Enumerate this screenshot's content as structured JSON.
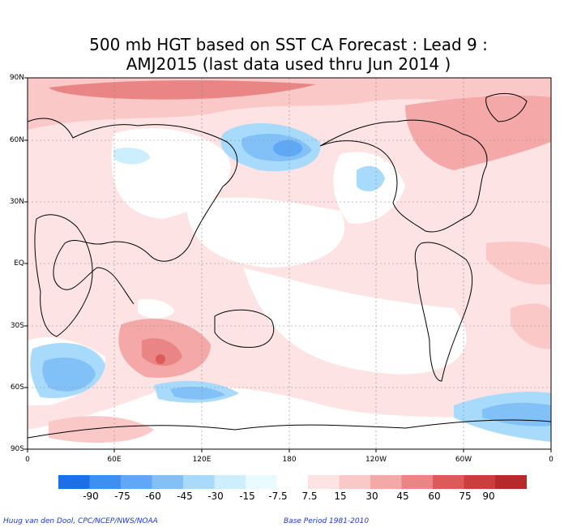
{
  "title": {
    "line1": "500 mb HGT based on SST CA Forecast : Lead 9 :",
    "line2": "AMJ2015 (last data used thru Jun 2014 )"
  },
  "lat_labels": [
    "90N",
    "60N",
    "30N",
    "EQ",
    "30S",
    "60S",
    "90S"
  ],
  "lon_labels": [
    "0",
    "60E",
    "120E",
    "180",
    "120W",
    "60W",
    "0"
  ],
  "colorbar": {
    "labels": [
      "-90",
      "-75",
      "-60",
      "-45",
      "-30",
      "-15",
      "-7.5",
      "7.5",
      "15",
      "30",
      "45",
      "60",
      "75",
      "90"
    ],
    "colors": [
      "#1e6ee8",
      "#3f8ff0",
      "#5fa8f5",
      "#82c0f8",
      "#a8dafb",
      "#cdeefc",
      "#e9fbff",
      "#ffffff",
      "#fde3e3",
      "#fbc8c8",
      "#f4a8a8",
      "#ea8585",
      "#dc5a5a",
      "#cc3d3d",
      "#b52a2a"
    ]
  },
  "credit_left": "Huug van den Dool, CPC/NCEP/NWS/NOAA",
  "credit_right": "Base Period 1981-2010"
}
